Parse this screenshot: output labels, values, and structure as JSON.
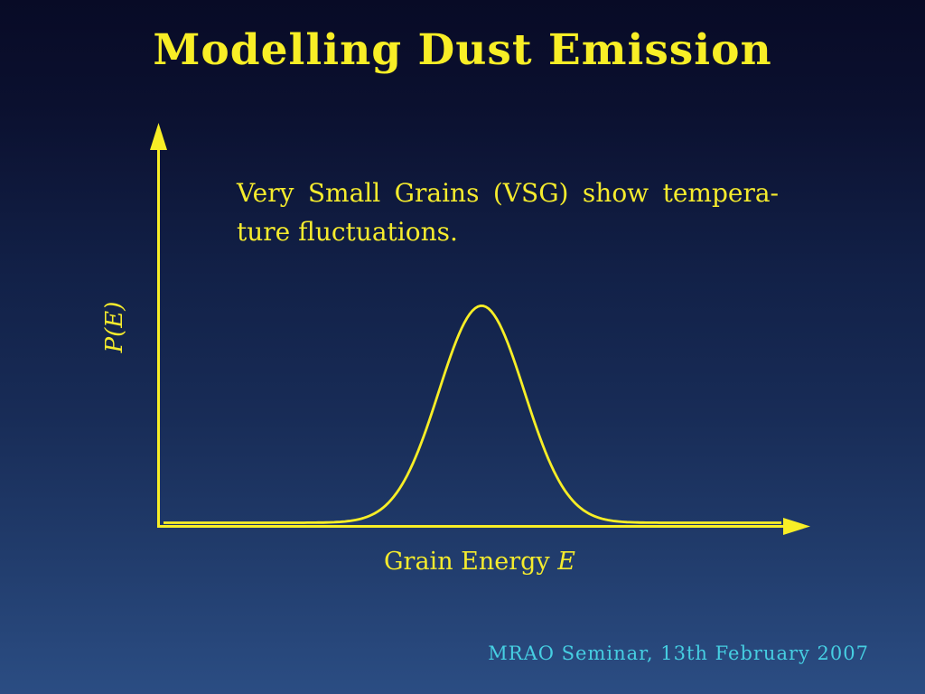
{
  "slide": {
    "title": "Modelling Dust Emission",
    "footer": "MRAO Seminar, 13th February 2007"
  },
  "body": {
    "line1": "Very Small Grains (VSG) show tempera-",
    "line2": "ture fluctuations."
  },
  "chart_data": {
    "type": "line",
    "title": "",
    "xlabel": "Grain Energy E",
    "xlabel_text": "Grain Energy",
    "xlabel_var": "E",
    "ylabel": "P(E)",
    "grid": false,
    "legend_position": "none",
    "axes_have_numeric_ticks": false,
    "curve_description": "Single smooth Gaussian-shaped probability distribution of grain energy, peaking near the middle of the unlabeled energy axis; both axes drawn as yellow arrows from the origin",
    "gaussian": {
      "mu_frac": 0.508,
      "sigma_frac": 0.067,
      "amp_frac": 0.554
    },
    "sampled_points_frac": {
      "x": [
        0,
        0.05,
        0.1,
        0.15,
        0.2,
        0.25,
        0.3,
        0.35,
        0.4,
        0.45,
        0.5,
        0.55,
        0.6,
        0.65,
        0.7,
        0.75,
        0.8,
        0.85,
        0.9,
        0.95,
        1
      ],
      "y": [
        0,
        0,
        0,
        0,
        0,
        0.001,
        0.006,
        0.045,
        0.18,
        0.42,
        0.55,
        0.42,
        0.18,
        0.045,
        0.006,
        0.001,
        0,
        0,
        0,
        0,
        0
      ]
    }
  },
  "colors": {
    "background_top": "#080b26",
    "background_bottom": "#2b4d83",
    "accent_yellow": "#f8ee26",
    "text_yellow": "#f5eb2d",
    "footer_cyan": "#46cfe2"
  }
}
